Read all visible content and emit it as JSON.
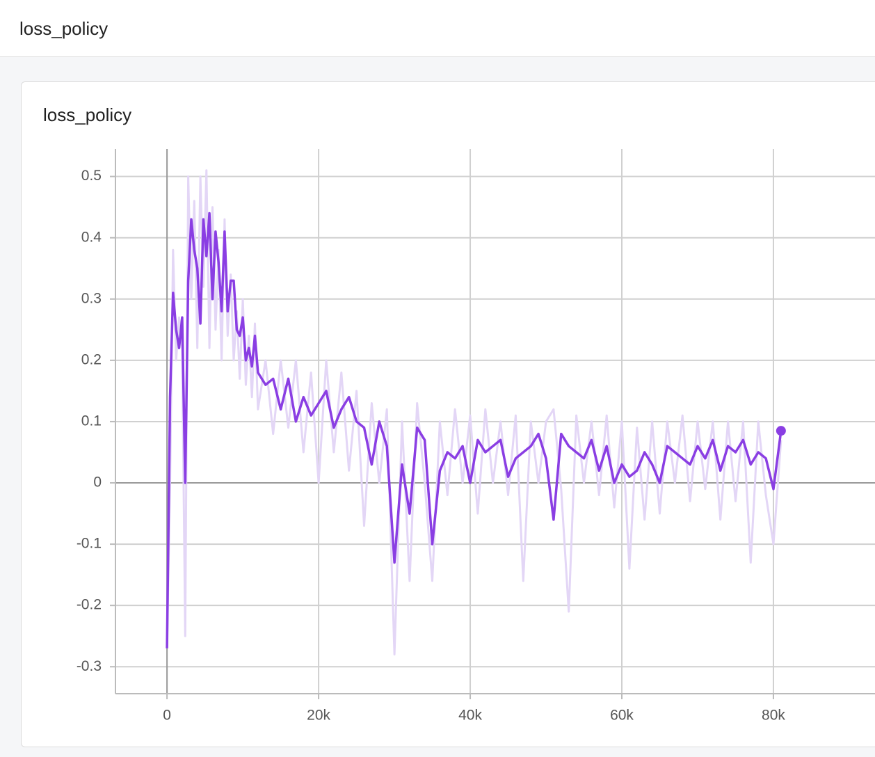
{
  "header": {
    "title": "loss_policy"
  },
  "chart_data": {
    "type": "line",
    "title": "loss_policy",
    "x": [
      0,
      400,
      800,
      1200,
      1600,
      2000,
      2400,
      2800,
      3200,
      3600,
      4000,
      4400,
      4800,
      5200,
      5600,
      6000,
      6400,
      6800,
      7200,
      7600,
      8000,
      8400,
      8800,
      9200,
      9600,
      10000,
      10400,
      10800,
      11200,
      11600,
      12000,
      13000,
      14000,
      15000,
      16000,
      17000,
      18000,
      19000,
      20000,
      21000,
      22000,
      23000,
      24000,
      25000,
      26000,
      27000,
      28000,
      29000,
      30000,
      31000,
      32000,
      33000,
      34000,
      35000,
      36000,
      37000,
      38000,
      39000,
      40000,
      41000,
      42000,
      43000,
      44000,
      45000,
      46000,
      47000,
      48000,
      49000,
      50000,
      51000,
      52000,
      53000,
      54000,
      55000,
      56000,
      57000,
      58000,
      59000,
      60000,
      61000,
      62000,
      63000,
      64000,
      65000,
      66000,
      67000,
      68000,
      69000,
      70000,
      71000,
      72000,
      73000,
      74000,
      75000,
      76000,
      77000,
      78000,
      79000,
      80000,
      81000
    ],
    "series": [
      {
        "color": "#e3d6f6",
        "values": [
          -0.27,
          0.0,
          0.38,
          0.2,
          0.27,
          0.22,
          -0.25,
          0.5,
          0.3,
          0.46,
          0.22,
          0.5,
          0.32,
          0.51,
          0.22,
          0.45,
          0.25,
          0.38,
          0.2,
          0.43,
          0.24,
          0.34,
          0.2,
          0.28,
          0.17,
          0.3,
          0.16,
          0.24,
          0.14,
          0.26,
          0.12,
          0.2,
          0.08,
          0.2,
          0.09,
          0.2,
          0.05,
          0.18,
          0.0,
          0.2,
          0.05,
          0.18,
          0.02,
          0.15,
          -0.07,
          0.13,
          0.0,
          0.12,
          -0.28,
          0.1,
          -0.16,
          0.13,
          0.0,
          -0.16,
          0.1,
          -0.02,
          0.12,
          0.0,
          0.11,
          -0.05,
          0.12,
          0.0,
          0.1,
          -0.02,
          0.11,
          -0.16,
          0.1,
          0.0,
          0.1,
          0.12,
          -0.01,
          -0.21,
          0.11,
          0.0,
          0.1,
          -0.02,
          0.11,
          -0.04,
          0.1,
          -0.14,
          0.09,
          -0.06,
          0.1,
          -0.05,
          0.1,
          0.0,
          0.11,
          -0.03,
          0.1,
          -0.01,
          0.1,
          -0.06,
          0.1,
          -0.03,
          0.1,
          -0.13,
          0.1,
          -0.02,
          -0.1,
          0.07
        ]
      },
      {
        "color": "#8a3ee3",
        "values": [
          -0.27,
          0.14,
          0.31,
          0.25,
          0.22,
          0.27,
          0.0,
          0.33,
          0.43,
          0.38,
          0.35,
          0.26,
          0.43,
          0.37,
          0.44,
          0.3,
          0.41,
          0.36,
          0.28,
          0.41,
          0.28,
          0.33,
          0.33,
          0.25,
          0.24,
          0.27,
          0.2,
          0.22,
          0.19,
          0.24,
          0.18,
          0.16,
          0.17,
          0.12,
          0.17,
          0.1,
          0.14,
          0.11,
          0.13,
          0.15,
          0.09,
          0.12,
          0.14,
          0.1,
          0.09,
          0.03,
          0.1,
          0.06,
          -0.13,
          0.03,
          -0.05,
          0.09,
          0.07,
          -0.1,
          0.02,
          0.05,
          0.04,
          0.06,
          0.0,
          0.07,
          0.05,
          0.06,
          0.07,
          0.01,
          0.04,
          0.05,
          0.06,
          0.08,
          0.04,
          -0.06,
          0.08,
          0.06,
          0.05,
          0.04,
          0.07,
          0.02,
          0.06,
          0.0,
          0.03,
          0.01,
          0.02,
          0.05,
          0.03,
          0.0,
          0.06,
          0.05,
          0.04,
          0.03,
          0.06,
          0.04,
          0.07,
          0.02,
          0.06,
          0.05,
          0.07,
          0.03,
          0.05,
          0.04,
          -0.01,
          0.085
        ]
      }
    ],
    "xlim": [
      -6800,
      93400
    ],
    "ylim": [
      -0.344,
      0.545
    ],
    "xticks": [
      0,
      {
        "value": 20000,
        "label": "20k"
      },
      {
        "value": 40000,
        "label": "40k"
      },
      {
        "value": 60000,
        "label": "60k"
      },
      {
        "value": 80000,
        "label": "80k"
      }
    ],
    "yticks": [
      -0.3,
      -0.2,
      -0.1,
      0,
      0.1,
      0.2,
      0.3,
      0.4,
      0.5
    ],
    "grid": true
  }
}
